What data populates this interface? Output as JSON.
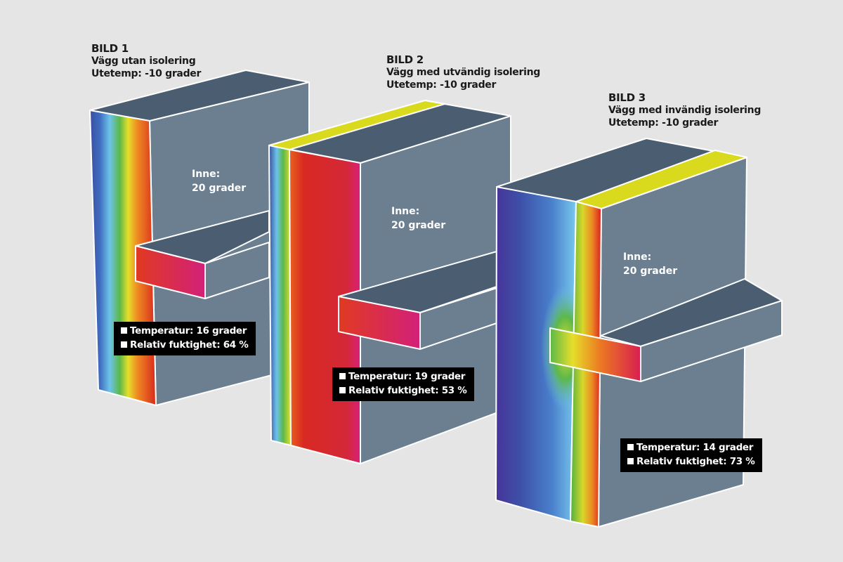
{
  "colors": {
    "background": "#e5e5e5",
    "top_face": "#4b5e71",
    "side_face": "#6b7f90",
    "insulation": "#d9da1e",
    "label_box": "#000000"
  },
  "panels": [
    {
      "heading": "BILD 1",
      "subtitle": "Vägg utan isolering",
      "outdoor": "Utetemp: -10 grader",
      "indoor_1": "Inne:",
      "indoor_2": "20 grader",
      "temperature": "Temperatur: 16 grader",
      "humidity": "Relativ fuktighet: 64 %"
    },
    {
      "heading": "BILD 2",
      "subtitle": "Vägg med utvändig isolering",
      "outdoor": "Utetemp: -10 grader",
      "indoor_1": "Inne:",
      "indoor_2": "20 grader",
      "temperature": "Temperatur: 19 grader",
      "humidity": "Relativ fuktighet: 53 %"
    },
    {
      "heading": "BILD 3",
      "subtitle": "Vägg med invändig isolering",
      "outdoor": "Utetemp: -10 grader",
      "indoor_1": "Inne:",
      "indoor_2": "20 grader",
      "temperature": "Temperatur: 14 grader",
      "humidity": "Relativ fuktighet: 73 %"
    }
  ]
}
